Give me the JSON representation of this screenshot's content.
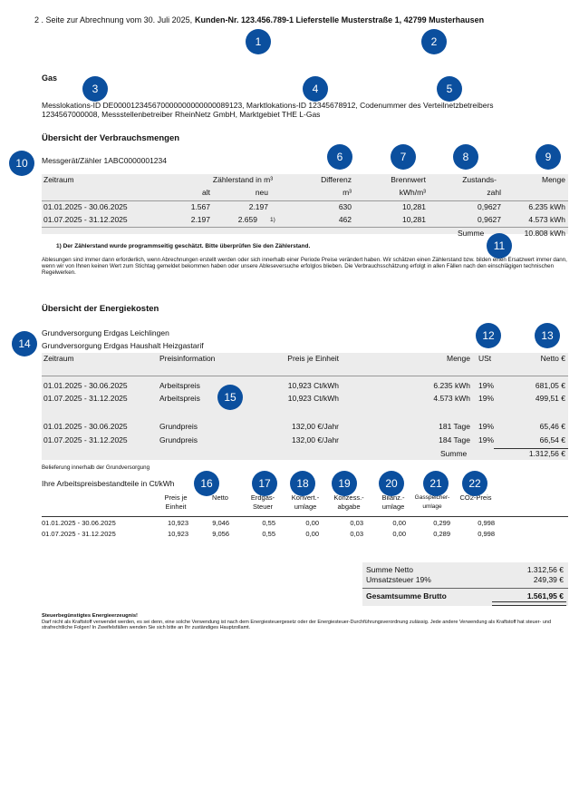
{
  "header": {
    "prefix": "2 . Seite zur Abrechnung vom 30. Juli 2025,",
    "bold": "Kunden-Nr. 123.456.789-1 Lieferstelle Musterstraße 1, 42799 Musterhausen"
  },
  "markers": [
    "1",
    "2",
    "3",
    "4",
    "5",
    "6",
    "7",
    "8",
    "9",
    "10",
    "11",
    "12",
    "13",
    "14",
    "15",
    "16",
    "17",
    "18",
    "19",
    "20",
    "21",
    "22"
  ],
  "gas": {
    "title": "Gas",
    "ids": "Messlokations-ID DE000012345670000000000000089123, Marktlokations-ID 12345678912, Codenummer des Verteilnetzbetreibers 1234567000008, Messstellenbetreiber RheinNetz GmbH, Marktgebiet THE L-Gas"
  },
  "consumption": {
    "title": "Übersicht der Verbrauchsmengen",
    "meter": "Messgerät/Zähler 1ABC0000001234",
    "header1": [
      "Zeitraum",
      "Zählerstand in m³",
      "Differenz",
      "Brennwert",
      "Zustands-",
      "Menge"
    ],
    "header2": [
      "alt",
      "neu",
      "m³",
      "kWh/m³",
      "zahl"
    ],
    "rows": [
      [
        "01.01.2025 - 30.06.2025",
        "1.567",
        "2.197",
        "630",
        "10,281",
        "0,9627",
        "6.235 kWh"
      ],
      [
        "01.07.2025 - 31.12.2025",
        "2.197",
        "2.659",
        "462",
        "10,281",
        "0,9627",
        "4.573 kWh"
      ]
    ],
    "footnote_mark": "1)",
    "sum_label": "Summe",
    "sum": "10.808 kWh",
    "footnote": "1) Der Zählerstand wurde programmseitig geschätzt. Bitte überprüfen Sie den Zählerstand.",
    "note": "Ablesungen sind immer dann erforderlich, wenn Abrechnungen erstellt werden oder sich innerhalb einer Periode Preise verändert haben. Wir schätzen einen Zählerstand bzw. bilden einen Ersatzwert immer dann, wenn wir von Ihnen keinen Wert zum Stichtag gemeldet bekommen haben oder unsere Ableseversuche erfolglos blieben. Die Verbrauchsschätzung erfolgt in allen Fällen nach den einschlägigen technischen Regelwerken."
  },
  "costs": {
    "title": "Übersicht der Energiekosten",
    "tariff": [
      "Grundversorgung Erdgas Leichlingen",
      "Grundversorgung Erdgas Haushalt Heizgastarif"
    ],
    "header": [
      "Zeitraum",
      "Preisinformation",
      "Preis je Einheit",
      "Menge",
      "USt",
      "Netto €"
    ],
    "rows": [
      [
        "01.01.2025 - 30.06.2025",
        "Arbeitspreis",
        "10,923 Ct/kWh",
        "6.235 kWh",
        "19%",
        "681,05 €"
      ],
      [
        "01.07.2025 - 31.12.2025",
        "Arbeitspreis",
        "10,923 Ct/kWh",
        "4.573 kWh",
        "19%",
        "499,51 €"
      ],
      [
        "01.01.2025 - 30.06.2025",
        "Grundpreis",
        "132,00 €/Jahr",
        "181 Tage",
        "19%",
        "65,46 €"
      ],
      [
        "01.07.2025 - 31.12.2025",
        "Grundpreis",
        "132,00 €/Jahr",
        "184 Tage",
        "19%",
        "66,54 €"
      ]
    ],
    "sum_label": "Summe",
    "sum": "1.312,56 €",
    "note": "Belieferung innerhalb der Grundversorgung"
  },
  "components": {
    "title": "Ihre Arbeitspreisbestandteile in Ct/kWh",
    "header": [
      [
        "Preis je",
        "Einheit"
      ],
      [
        "Netto"
      ],
      [
        "Erdgas-",
        "Steuer"
      ],
      [
        "Konvert.-",
        "umlage"
      ],
      [
        "Konzess.-",
        "abgabe"
      ],
      [
        "Bilanz.-",
        "umlage"
      ],
      [
        "Gasspeicher-",
        "umlage"
      ],
      [
        "CO2-Preis"
      ]
    ],
    "rows": [
      [
        "01.01.2025 - 30.06.2025",
        "10,923",
        "9,046",
        "0,55",
        "0,00",
        "0,03",
        "0,00",
        "0,299",
        "0,998"
      ],
      [
        "01.07.2025 - 31.12.2025",
        "10,923",
        "9,056",
        "0,55",
        "0,00",
        "0,03",
        "0,00",
        "0,289",
        "0,998"
      ]
    ]
  },
  "totals": [
    [
      "Summe Netto",
      "1.312,56 €"
    ],
    [
      "Umsatzsteuer 19%",
      "249,39 €"
    ],
    [
      "Gesamtsumme Brutto",
      "1.561,95 €"
    ]
  ],
  "footer": {
    "title": "Steuerbegünstigtes Energieerzeugnis!",
    "text": "Darf nicht als Kraftstoff verwendet werden, es sei denn, eine solche Verwendung ist nach dem Energiesteuergesetz oder der Energiesteuer-Durchführungsverordnung zulässig. Jede andere Verwendung als Kraftstoff hat steuer- und strafrechtliche Folgen! In Zweifelsfällen wenden Sie sich bitte an Ihr zuständiges Hauptzollamt."
  }
}
